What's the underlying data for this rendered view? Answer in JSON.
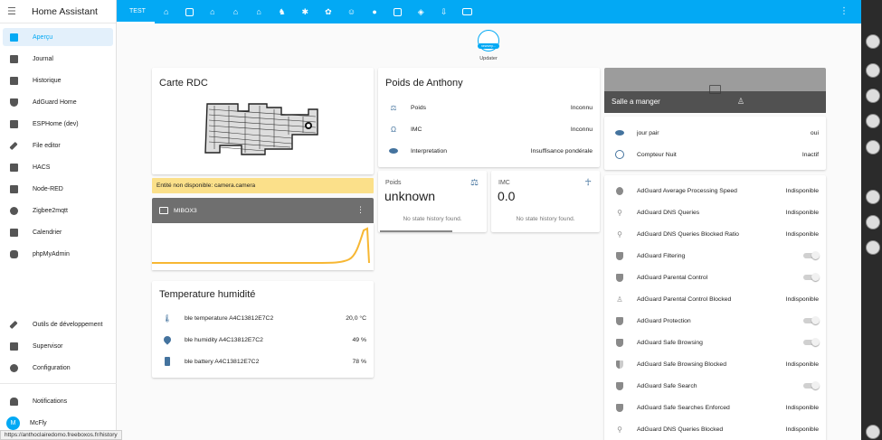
{
  "app": {
    "title": "Home Assistant"
  },
  "sidebar": {
    "items": [
      {
        "label": "Aperçu",
        "icon": "view-dashboard-icon"
      },
      {
        "label": "Journal",
        "icon": "list-icon"
      },
      {
        "label": "Historique",
        "icon": "chart-box-icon"
      },
      {
        "label": "AdGuard Home",
        "icon": "shield-icon"
      },
      {
        "label": "ESPHome (dev)",
        "icon": "chip-icon"
      },
      {
        "label": "File editor",
        "icon": "wrench-icon"
      },
      {
        "label": "HACS",
        "icon": "hacs-icon"
      },
      {
        "label": "Node-RED",
        "icon": "sitemap-icon"
      },
      {
        "label": "Zigbee2mqtt",
        "icon": "compass-icon"
      },
      {
        "label": "Calendrier",
        "icon": "calendar-icon"
      },
      {
        "label": "phpMyAdmin",
        "icon": "database-icon"
      }
    ],
    "bottom": [
      {
        "label": "Outils de développement",
        "icon": "hammer-icon"
      },
      {
        "label": "Supervisor",
        "icon": "home-assistant-icon"
      },
      {
        "label": "Configuration",
        "icon": "cog-icon"
      }
    ],
    "notifications": "Notifications",
    "user": {
      "name": "McFly",
      "initial": "M"
    }
  },
  "topbar": {
    "active_tab": "TEST",
    "tab_icons": [
      "home-icon",
      "calendar-icon",
      "home-variant-icon",
      "home-outline-icon",
      "home-floor-icon",
      "dog-icon",
      "palm-tree-icon",
      "flower-icon",
      "robot-icon",
      "water-icon",
      "printer-icon",
      "shield-check-icon",
      "download-icon",
      "monitor-icon"
    ]
  },
  "updater": {
    "badge": "newverp...",
    "label": "Updater"
  },
  "carte": {
    "title": "Carte RDC"
  },
  "warning": "Entité non disponible: camera.camera",
  "media": {
    "label": "MIBOX3"
  },
  "temperature": {
    "title": "Temperature humidité",
    "rows": [
      {
        "name": "ble temperature A4C13812E7C2",
        "value": "20,0 °C",
        "icon": "thermometer-icon"
      },
      {
        "name": "ble humidity A4C13812E7C2",
        "value": "49 %",
        "icon": "water-percent-icon"
      },
      {
        "name": "ble battery A4C13812E7C2",
        "value": "78 %",
        "icon": "battery-icon"
      }
    ]
  },
  "poids": {
    "title": "Poids de Anthony",
    "rows": [
      {
        "name": "Poids",
        "value": "Inconnu",
        "icon": "scale-icon"
      },
      {
        "name": "IMC",
        "value": "Inconnu",
        "icon": "omega-icon"
      },
      {
        "name": "Interpretation",
        "value": "Insuffisance pondérale",
        "icon": "eye-icon"
      }
    ]
  },
  "stat_poids": {
    "name": "Poids",
    "value": "unknown",
    "history": "No state history found."
  },
  "stat_imc": {
    "name": "IMC",
    "value": "0.0",
    "history": "No state history found."
  },
  "salle": {
    "label": "Salle a manger"
  },
  "jour": {
    "rows": [
      {
        "name": "jour pair",
        "value": "oui",
        "icon": "eye-icon"
      },
      {
        "name": "Compteur Nuit",
        "value": "Inactif",
        "icon": "circle-outline-icon"
      }
    ]
  },
  "adguard": {
    "rows": [
      {
        "name": "AdGuard Average Processing Speed",
        "value": "Indisponible",
        "icon": "speedometer-icon",
        "toggle": false
      },
      {
        "name": "AdGuard DNS Queries",
        "value": "Indisponible",
        "icon": "magnify-icon",
        "toggle": false
      },
      {
        "name": "AdGuard DNS Queries Blocked Ratio",
        "value": "Indisponible",
        "icon": "magnify-close-icon",
        "toggle": false
      },
      {
        "name": "AdGuard Filtering",
        "value": "",
        "icon": "shield-check-icon",
        "toggle": true
      },
      {
        "name": "AdGuard Parental Control",
        "value": "",
        "icon": "shield-check-icon",
        "toggle": true
      },
      {
        "name": "AdGuard Parental Control Blocked",
        "value": "Indisponible",
        "icon": "human-male-girl-icon",
        "toggle": false
      },
      {
        "name": "AdGuard Protection",
        "value": "",
        "icon": "shield-check-icon",
        "toggle": true
      },
      {
        "name": "AdGuard Safe Browsing",
        "value": "",
        "icon": "shield-check-icon",
        "toggle": true
      },
      {
        "name": "AdGuard Safe Browsing Blocked",
        "value": "Indisponible",
        "icon": "shield-half-icon",
        "toggle": false
      },
      {
        "name": "AdGuard Safe Search",
        "value": "",
        "icon": "shield-check-icon",
        "toggle": true
      },
      {
        "name": "AdGuard Safe Searches Enforced",
        "value": "Indisponible",
        "icon": "shield-search-icon",
        "toggle": false
      },
      {
        "name": "AdGuard DNS Queries Blocked",
        "value": "Indisponible",
        "icon": "magnify-close-icon",
        "toggle": false
      }
    ]
  },
  "status_url": "https://anthoclairedomo.freeboxos.fr/history",
  "colors": {
    "primary": "#03a9f4",
    "icon": "#44739e",
    "warning": "#fbe08a",
    "graph": "#f7b733"
  }
}
